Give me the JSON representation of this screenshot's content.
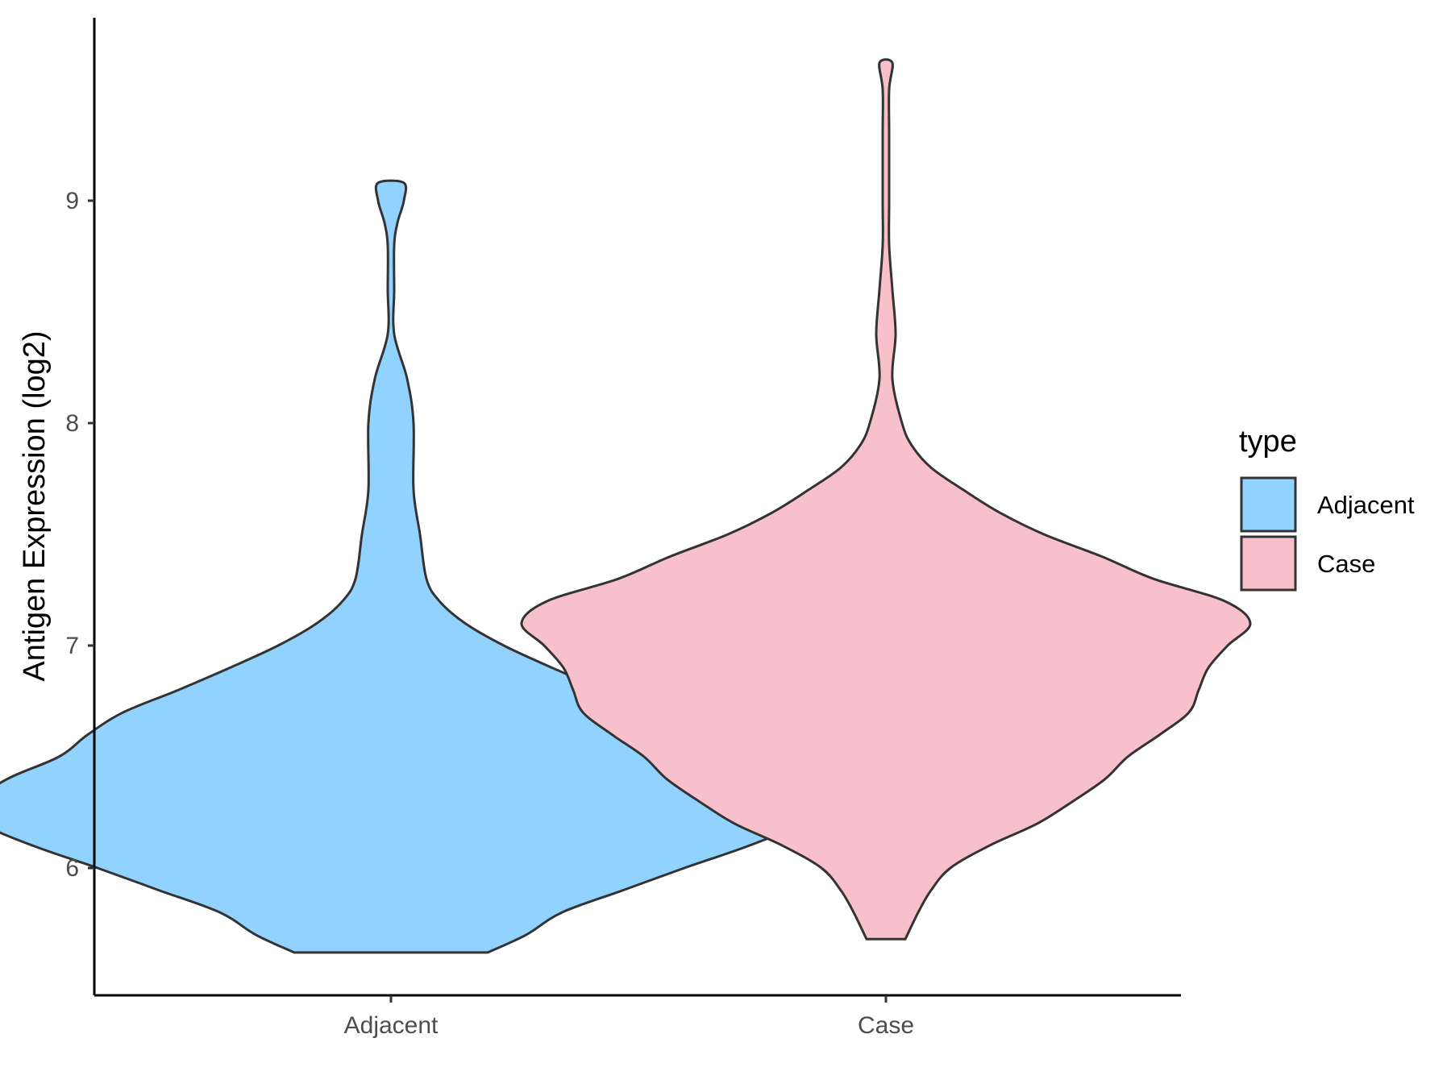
{
  "chart_data": {
    "type": "violin",
    "ylabel": "Antigen Expression (log2)",
    "xlabel": "",
    "categories": [
      "Adjacent",
      "Case"
    ],
    "ylim": [
      5.45,
      9.85
    ],
    "yticks": [
      "6",
      "7",
      "8",
      "9"
    ],
    "legend": {
      "title": "type",
      "position": "right",
      "entries": [
        "Adjacent",
        "Case"
      ]
    },
    "grid": false,
    "colors": {
      "Adjacent": "#92d2fe",
      "Case": "#f7c0ca",
      "outline": "#333333"
    },
    "series": [
      {
        "name": "Adjacent",
        "min": 5.62,
        "max": 9.08,
        "profile": [
          [
            5.62,
            0.3
          ],
          [
            5.7,
            0.42
          ],
          [
            5.8,
            0.53
          ],
          [
            5.9,
            0.72
          ],
          [
            6.0,
            0.91
          ],
          [
            6.1,
            1.11
          ],
          [
            6.2,
            1.27
          ],
          [
            6.28,
            1.31
          ],
          [
            6.4,
            1.19
          ],
          [
            6.5,
            1.03
          ],
          [
            6.6,
            0.94
          ],
          [
            6.7,
            0.83
          ],
          [
            6.8,
            0.66
          ],
          [
            6.9,
            0.5
          ],
          [
            7.0,
            0.35
          ],
          [
            7.1,
            0.23
          ],
          [
            7.2,
            0.15
          ],
          [
            7.3,
            0.11
          ],
          [
            7.5,
            0.09
          ],
          [
            7.7,
            0.07
          ],
          [
            8.0,
            0.07
          ],
          [
            8.2,
            0.05
          ],
          [
            8.4,
            0.01
          ],
          [
            8.6,
            0.01
          ],
          [
            8.8,
            0.01
          ],
          [
            8.9,
            0.02
          ],
          [
            9.0,
            0.04
          ],
          [
            9.08,
            0.04
          ]
        ]
      },
      {
        "name": "Case",
        "min": 5.68,
        "max": 9.62,
        "profile": [
          [
            5.68,
            0.06
          ],
          [
            5.8,
            0.1
          ],
          [
            5.9,
            0.14
          ],
          [
            6.0,
            0.2
          ],
          [
            6.1,
            0.32
          ],
          [
            6.2,
            0.47
          ],
          [
            6.3,
            0.58
          ],
          [
            6.4,
            0.68
          ],
          [
            6.5,
            0.75
          ],
          [
            6.6,
            0.85
          ],
          [
            6.7,
            0.94
          ],
          [
            6.8,
            0.97
          ],
          [
            6.9,
            1.0
          ],
          [
            7.0,
            1.06
          ],
          [
            7.1,
            1.13
          ],
          [
            7.2,
            1.05
          ],
          [
            7.3,
            0.83
          ],
          [
            7.4,
            0.67
          ],
          [
            7.5,
            0.49
          ],
          [
            7.6,
            0.35
          ],
          [
            7.7,
            0.24
          ],
          [
            7.8,
            0.14
          ],
          [
            7.9,
            0.08
          ],
          [
            8.0,
            0.05
          ],
          [
            8.2,
            0.02
          ],
          [
            8.4,
            0.03
          ],
          [
            8.6,
            0.02
          ],
          [
            8.8,
            0.01
          ],
          [
            9.0,
            0.01
          ],
          [
            9.3,
            0.01
          ],
          [
            9.5,
            0.01
          ],
          [
            9.62,
            0.02
          ]
        ]
      }
    ]
  }
}
